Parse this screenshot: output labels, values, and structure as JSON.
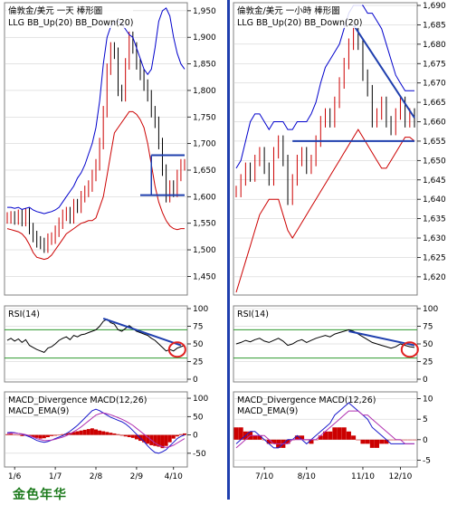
{
  "watermark": "金色年华",
  "chart_data": [
    {
      "type": "line",
      "id": "left-price",
      "title": "倫敦金/美元 一天 棒形圖",
      "subtitle": "LLG  BB_Up(20)  BB_Down(20)",
      "ylim": [
        1420,
        1960
      ],
      "yticks": [
        1450,
        1500,
        1550,
        1600,
        1650,
        1700,
        1750,
        1800,
        1850,
        1900,
        1950
      ],
      "ytick_labels": [
        "1,450",
        "1,500",
        "1,550",
        "1,600",
        "1,650",
        "1,700",
        "1,750",
        "1,800",
        "1,850",
        "1,900",
        "1,950"
      ],
      "series": [
        {
          "role": "price",
          "color": "#cc0000",
          "values": [
            1560,
            1562,
            1558,
            1565,
            1555,
            1568,
            1540,
            1525,
            1515,
            1512,
            1505,
            1520,
            1522,
            1535,
            1550,
            1565,
            1570,
            1560,
            1585,
            1580,
            1600,
            1610,
            1620,
            1640,
            1660,
            1700,
            1760,
            1840,
            1880,
            1870,
            1800,
            1790,
            1850,
            1900,
            1880,
            1850,
            1830,
            1810,
            1790,
            1760,
            1740,
            1700,
            1650,
            1600,
            1620,
            1610,
            1640,
            1660,
            1660
          ]
        },
        {
          "role": "bb-up",
          "color": "#0000cc",
          "values": [
            1580,
            1580,
            1578,
            1580,
            1576,
            1578,
            1580,
            1575,
            1572,
            1570,
            1568,
            1570,
            1572,
            1575,
            1580,
            1590,
            1600,
            1610,
            1620,
            1635,
            1645,
            1660,
            1680,
            1700,
            1730,
            1780,
            1850,
            1900,
            1920,
            1930,
            1930,
            1925,
            1915,
            1905,
            1900,
            1880,
            1860,
            1840,
            1830,
            1840,
            1880,
            1930,
            1950,
            1955,
            1940,
            1900,
            1870,
            1850,
            1840
          ]
        },
        {
          "role": "bb-down",
          "color": "#cc0000",
          "values": [
            1540,
            1538,
            1536,
            1534,
            1530,
            1522,
            1510,
            1495,
            1486,
            1484,
            1482,
            1484,
            1490,
            1500,
            1510,
            1520,
            1530,
            1535,
            1540,
            1545,
            1550,
            1552,
            1555,
            1555,
            1560,
            1580,
            1600,
            1640,
            1680,
            1720,
            1730,
            1740,
            1750,
            1760,
            1760,
            1755,
            1745,
            1730,
            1700,
            1660,
            1620,
            1590,
            1570,
            1555,
            1545,
            1540,
            1538,
            1540,
            1540
          ]
        }
      ],
      "annotations": [
        {
          "kind": "hline",
          "y": 1678,
          "from": 39,
          "to": 48
        },
        {
          "kind": "hline",
          "y": 1603,
          "from": 36,
          "to": 48
        },
        {
          "kind": "vline",
          "x": 39,
          "from": 1603,
          "to": 1678
        }
      ]
    },
    {
      "type": "line",
      "id": "left-rsi",
      "title": "RSI(14)",
      "ylim": [
        0,
        100
      ],
      "yticks": [
        0,
        25,
        50,
        75,
        100
      ],
      "ytick_labels": [
        "0",
        "25",
        "50",
        "75",
        "100"
      ],
      "reference_lines": [
        30,
        70
      ],
      "values": [
        55,
        58,
        54,
        57,
        52,
        56,
        48,
        45,
        42,
        40,
        38,
        44,
        46,
        50,
        55,
        58,
        60,
        56,
        62,
        60,
        63,
        64,
        66,
        68,
        70,
        75,
        82,
        85,
        80,
        78,
        70,
        68,
        72,
        76,
        72,
        68,
        66,
        64,
        62,
        58,
        55,
        50,
        45,
        40,
        42,
        40,
        44,
        46,
        48
      ],
      "annotations": [
        {
          "kind": "trend",
          "from": [
            26,
            86
          ],
          "to": [
            47,
            48
          ]
        },
        {
          "kind": "circle",
          "at": [
            46,
            42
          ]
        }
      ]
    },
    {
      "type": "bar",
      "id": "left-macd",
      "title": "MACD_Divergence  MACD(12,26)",
      "subtitle": "MACD_EMA(9)",
      "ylim": [
        -80,
        110
      ],
      "yticks": [
        -50,
        0,
        50,
        100
      ],
      "ytick_labels": [
        "-50",
        "0",
        "50",
        "100"
      ],
      "x_labels": [
        "1/6",
        "1/7",
        "2/8",
        "2/9",
        "4/10"
      ],
      "x_label_positions": [
        2,
        13,
        24,
        35,
        45
      ],
      "histogram": [
        2,
        3,
        1,
        -1,
        -3,
        -2,
        -4,
        -6,
        -8,
        -10,
        -9,
        -6,
        -3,
        -2,
        -1,
        2,
        4,
        6,
        8,
        10,
        12,
        14,
        16,
        18,
        15,
        12,
        10,
        8,
        6,
        4,
        2,
        -2,
        -4,
        -6,
        -8,
        -12,
        -16,
        -20,
        -24,
        -28,
        -30,
        -32,
        -36,
        -30,
        -20,
        -10,
        -4,
        2,
        4
      ],
      "macd": [
        6,
        7,
        6,
        4,
        2,
        -1,
        -5,
        -10,
        -15,
        -18,
        -20,
        -18,
        -14,
        -10,
        -6,
        -2,
        4,
        10,
        18,
        26,
        36,
        46,
        56,
        66,
        70,
        66,
        60,
        54,
        48,
        44,
        40,
        36,
        30,
        22,
        12,
        2,
        -8,
        -18,
        -30,
        -40,
        -48,
        -50,
        -46,
        -40,
        -30,
        -20,
        -10,
        -4,
        0
      ],
      "ema": [
        4,
        5,
        5,
        4,
        3,
        1,
        -2,
        -6,
        -10,
        -13,
        -15,
        -15,
        -14,
        -12,
        -9,
        -6,
        -2,
        3,
        9,
        15,
        22,
        30,
        38,
        46,
        54,
        58,
        60,
        58,
        55,
        51,
        47,
        43,
        38,
        32,
        26,
        18,
        10,
        2,
        -6,
        -14,
        -22,
        -28,
        -32,
        -34,
        -32,
        -28,
        -22,
        -16,
        -10
      ]
    },
    {
      "type": "line",
      "id": "right-price",
      "title": "倫敦金/美元 一小時 棒形圖",
      "subtitle": "LLG  BB_Up(20)  BB_Down(20)",
      "ylim": [
        1616,
        1690
      ],
      "yticks": [
        1620,
        1625,
        1630,
        1635,
        1640,
        1645,
        1650,
        1655,
        1660,
        1665,
        1670,
        1675,
        1680,
        1685,
        1690
      ],
      "ytick_labels": [
        "1,620",
        "1,625",
        "1,630",
        "1,635",
        "1,640",
        "1,645",
        "1,650",
        "1,655",
        "1,660",
        "1,665",
        "1,670",
        "1,675",
        "1,680",
        "1,685",
        "1,690"
      ],
      "series": [
        {
          "role": "price",
          "color": "#cc0000",
          "values": [
            1642,
            1645,
            1648,
            1646,
            1650,
            1652,
            1648,
            1645,
            1652,
            1655,
            1650,
            1640,
            1645,
            1650,
            1652,
            1648,
            1650,
            1655,
            1660,
            1662,
            1660,
            1665,
            1670,
            1675,
            1680,
            1683,
            1680,
            1672,
            1668,
            1660,
            1662,
            1665,
            1660,
            1658,
            1662,
            1665,
            1660,
            1662,
            1660
          ]
        },
        {
          "role": "bb-up",
          "color": "#0000cc",
          "values": [
            1648,
            1650,
            1655,
            1660,
            1662,
            1662,
            1660,
            1658,
            1660,
            1660,
            1660,
            1658,
            1658,
            1660,
            1660,
            1660,
            1662,
            1665,
            1670,
            1674,
            1676,
            1678,
            1680,
            1684,
            1688,
            1690,
            1690,
            1690,
            1688,
            1688,
            1686,
            1684,
            1680,
            1676,
            1672,
            1670,
            1668,
            1668,
            1668
          ]
        },
        {
          "role": "bb-down",
          "color": "#cc0000",
          "values": [
            1616,
            1620,
            1624,
            1628,
            1632,
            1636,
            1638,
            1640,
            1640,
            1640,
            1636,
            1632,
            1630,
            1632,
            1634,
            1636,
            1638,
            1640,
            1642,
            1644,
            1646,
            1648,
            1650,
            1652,
            1654,
            1656,
            1658,
            1656,
            1654,
            1652,
            1650,
            1648,
            1648,
            1650,
            1652,
            1654,
            1656,
            1656,
            1655
          ]
        }
      ],
      "annotations": [
        {
          "kind": "hline",
          "y": 1655,
          "from": 12,
          "to": 38
        },
        {
          "kind": "trend",
          "from": [
            25,
            1685
          ],
          "to": [
            38,
            1661
          ]
        }
      ]
    },
    {
      "type": "line",
      "id": "right-rsi",
      "title": "RSI(14)",
      "ylim": [
        0,
        100
      ],
      "yticks": [
        0,
        25,
        50,
        75,
        100
      ],
      "ytick_labels": [
        "0",
        "25",
        "50",
        "75",
        "100"
      ],
      "reference_lines": [
        30,
        70
      ],
      "values": [
        50,
        52,
        55,
        53,
        56,
        58,
        54,
        52,
        55,
        58,
        54,
        48,
        50,
        54,
        56,
        52,
        55,
        58,
        60,
        62,
        60,
        64,
        66,
        68,
        70,
        68,
        64,
        60,
        56,
        52,
        50,
        48,
        46,
        44,
        46,
        50,
        48,
        46,
        45
      ],
      "annotations": [
        {
          "kind": "trend",
          "from": [
            24,
            68
          ],
          "to": [
            38,
            48
          ]
        },
        {
          "kind": "circle",
          "at": [
            37,
            42
          ]
        }
      ]
    },
    {
      "type": "bar",
      "id": "right-macd",
      "title": "MACD_Divergence  MACD(12,26)",
      "subtitle": "MACD_EMA(9)",
      "ylim": [
        -6,
        11
      ],
      "yticks": [
        -5,
        0,
        5,
        10
      ],
      "ytick_labels": [
        "-5",
        "0",
        "5",
        "10"
      ],
      "x_labels": [
        "7/10",
        "8/10",
        "11/10",
        "12/10"
      ],
      "x_label_positions": [
        6,
        15,
        27,
        35
      ],
      "histogram": [
        3,
        3,
        2,
        2,
        1,
        1,
        0,
        -1,
        -1,
        -2,
        -2,
        -1,
        0,
        1,
        1,
        0,
        -1,
        0,
        1,
        2,
        2,
        3,
        3,
        3,
        2,
        1,
        0,
        -1,
        -1,
        -2,
        -2,
        -1,
        -1,
        0,
        0,
        0,
        0,
        0,
        0
      ],
      "macd": [
        -1,
        0,
        1,
        2,
        2,
        1,
        0,
        -1,
        -2,
        -2,
        -1,
        0,
        0,
        1,
        0,
        -1,
        0,
        1,
        2,
        3,
        4,
        6,
        7,
        8,
        9,
        8,
        7,
        6,
        5,
        3,
        2,
        1,
        0,
        -1,
        -1,
        -1,
        -1,
        -1,
        -1
      ],
      "ema": [
        -2,
        -1,
        0,
        1,
        1,
        1,
        1,
        0,
        -1,
        -1,
        -1,
        -1,
        0,
        0,
        0,
        0,
        0,
        0,
        1,
        2,
        3,
        4,
        5,
        6,
        7,
        7,
        7,
        6,
        6,
        5,
        4,
        3,
        2,
        1,
        0,
        0,
        -1,
        -1,
        -1
      ]
    }
  ]
}
